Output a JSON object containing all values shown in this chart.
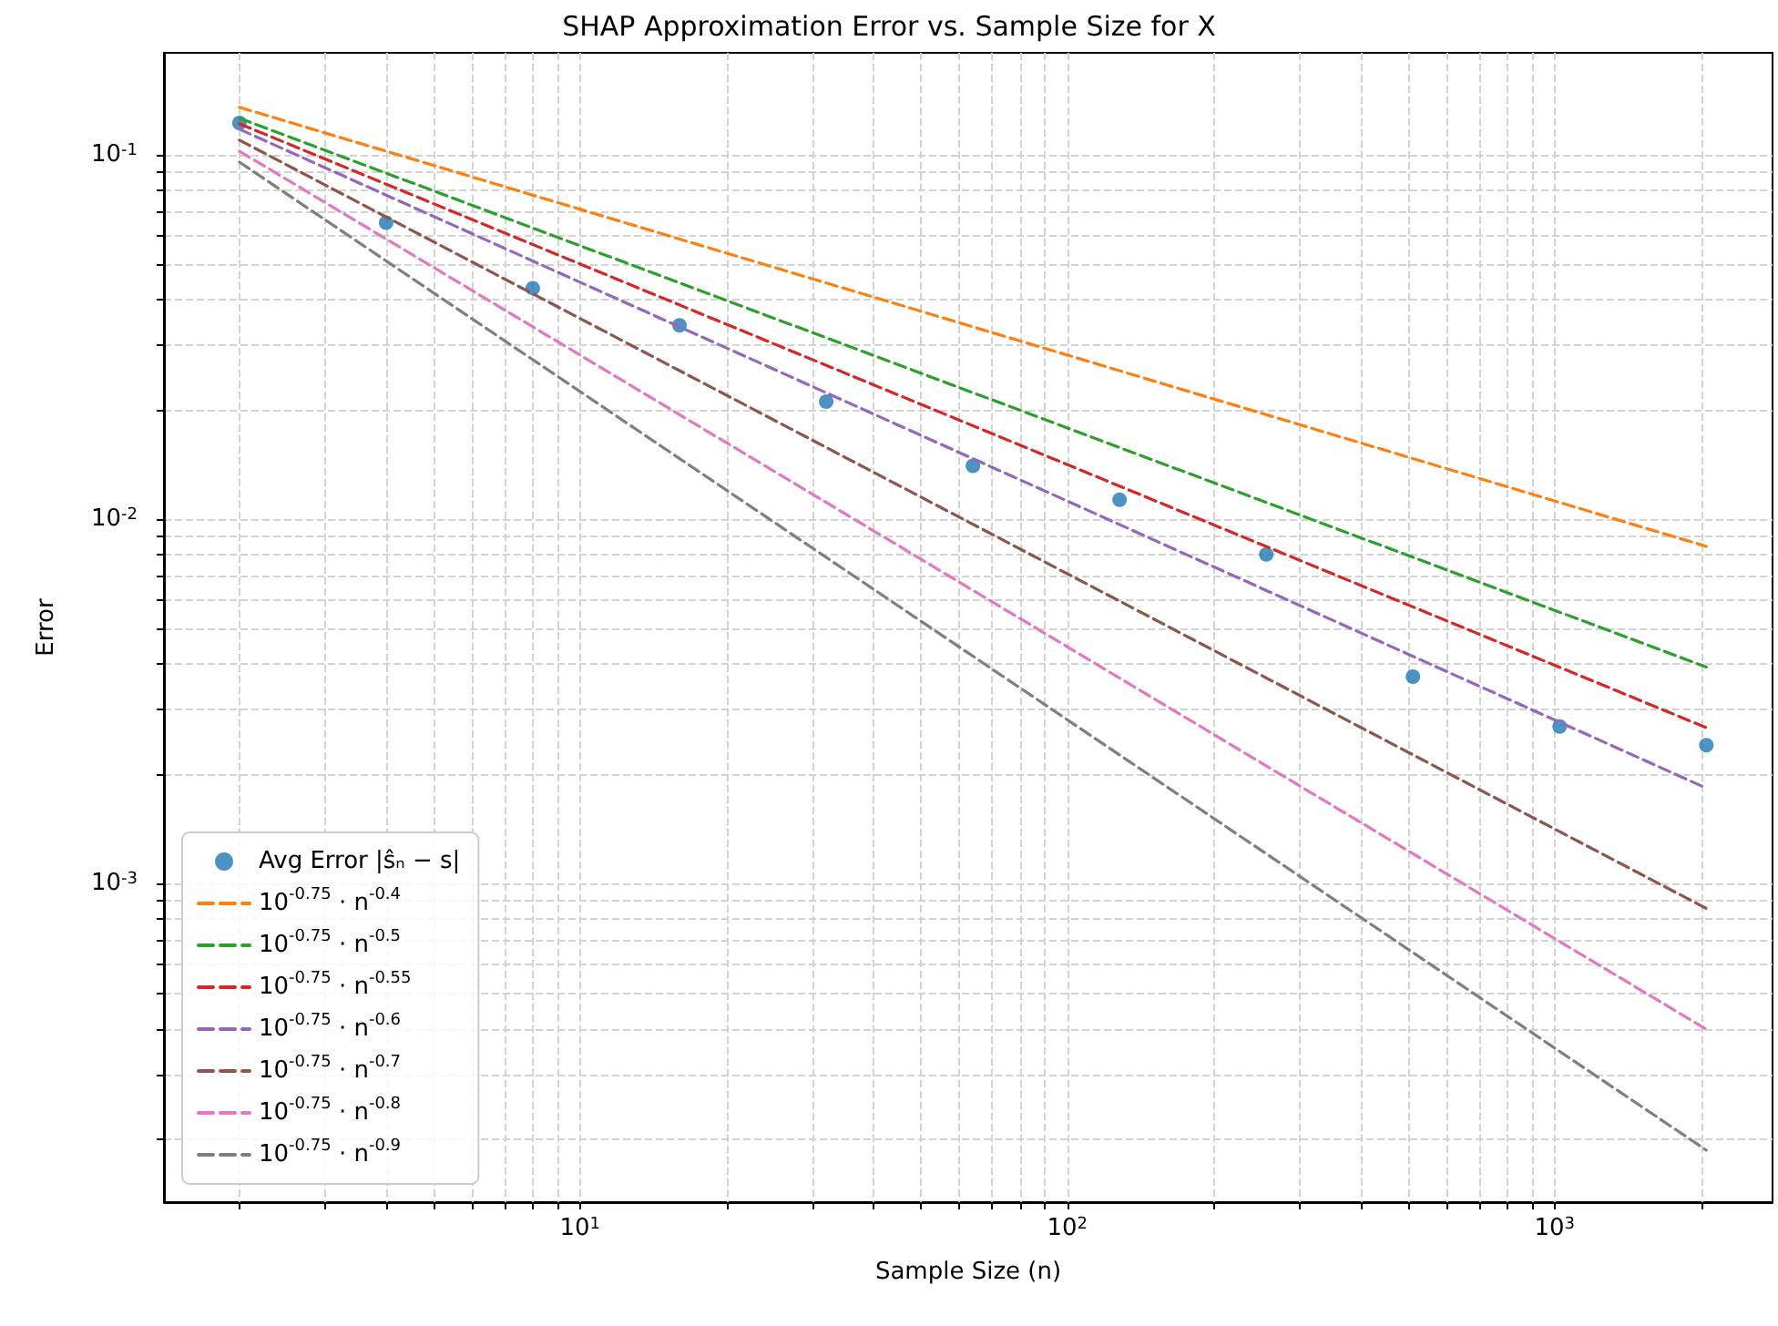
{
  "chart_data": {
    "type": "line",
    "title": "SHAP Approximation Error vs. Sample Size for X",
    "xlabel": "Sample Size (n)",
    "ylabel": "Error",
    "log": "xy",
    "grid": true,
    "legend": "bottom left",
    "line_style": "dashed",
    "marker": "none",
    "xlim": [
      1.4,
      2800
    ],
    "ylim": [
      0.000134,
      0.19
    ],
    "xticks": [
      {
        "value": 2,
        "label": null
      },
      {
        "value": 3,
        "label": null
      },
      {
        "value": 4,
        "label": null
      },
      {
        "value": 5,
        "label": null
      },
      {
        "value": 6,
        "label": null
      },
      {
        "value": 7,
        "label": null
      },
      {
        "value": 8,
        "label": null
      },
      {
        "value": 9,
        "label": null
      },
      {
        "value": 10,
        "label": "10$^{1}$"
      },
      {
        "value": 20,
        "label": null
      },
      {
        "value": 30,
        "label": null
      },
      {
        "value": 40,
        "label": null
      },
      {
        "value": 50,
        "label": null
      },
      {
        "value": 60,
        "label": null
      },
      {
        "value": 70,
        "label": null
      },
      {
        "value": 80,
        "label": null
      },
      {
        "value": 90,
        "label": null
      },
      {
        "value": 100,
        "label": "10$^{2}$"
      },
      {
        "value": 200,
        "label": null
      },
      {
        "value": 300,
        "label": null
      },
      {
        "value": 400,
        "label": null
      },
      {
        "value": 500,
        "label": null
      },
      {
        "value": 600,
        "label": null
      },
      {
        "value": 700,
        "label": null
      },
      {
        "value": 800,
        "label": null
      },
      {
        "value": 900,
        "label": null
      },
      {
        "value": 1000,
        "label": "10$^{3}$"
      },
      {
        "value": 2000,
        "label": null
      }
    ],
    "yticks": [
      {
        "value": 0.0002,
        "label": null
      },
      {
        "value": 0.0003,
        "label": null
      },
      {
        "value": 0.0004,
        "label": null
      },
      {
        "value": 0.0005,
        "label": null
      },
      {
        "value": 0.0006,
        "label": null
      },
      {
        "value": 0.0007,
        "label": null
      },
      {
        "value": 0.0008,
        "label": null
      },
      {
        "value": 0.0009,
        "label": null
      },
      {
        "value": 0.001,
        "label": "10$^{-3}$"
      },
      {
        "value": 0.002,
        "label": null
      },
      {
        "value": 0.003,
        "label": null
      },
      {
        "value": 0.004,
        "label": null
      },
      {
        "value": 0.005,
        "label": null
      },
      {
        "value": 0.006,
        "label": null
      },
      {
        "value": 0.007,
        "label": null
      },
      {
        "value": 0.008,
        "label": null
      },
      {
        "value": 0.009,
        "label": null
      },
      {
        "value": 0.01,
        "label": "10$^{-2}$"
      },
      {
        "value": 0.02,
        "label": null
      },
      {
        "value": 0.03,
        "label": null
      },
      {
        "value": 0.04,
        "label": null
      },
      {
        "value": 0.05,
        "label": null
      },
      {
        "value": 0.06,
        "label": null
      },
      {
        "value": 0.07,
        "label": null
      },
      {
        "value": 0.08,
        "label": null
      },
      {
        "value": 0.09,
        "label": null
      },
      {
        "value": 0.1,
        "label": "10$^{-1}$"
      }
    ],
    "series": [
      {
        "name": "Avg Error |ŝₙ − s|",
        "type": "scatter",
        "marker": "circle",
        "color": "#1f77b4",
        "x": [
          2,
          4,
          8,
          16,
          32,
          64,
          128,
          256,
          512,
          1024,
          2048
        ],
        "values": [
          0.122,
          0.065,
          0.043,
          0.034,
          0.021,
          0.014,
          0.0113,
          0.008,
          0.0037,
          0.0027,
          0.0024
        ]
      },
      {
        "name": "10$^{-0.75}$ · n$^{-0.4}$",
        "color": "#ff7f0e",
        "x": [
          2,
          2048
        ],
        "values": [
          0.1347,
          0.00842
        ]
      },
      {
        "name": "10$^{-0.75}$ · n$^{-0.5}$",
        "color": "#2ca02c",
        "x": [
          2,
          2048
        ],
        "values": [
          0.1257,
          0.00393
        ]
      },
      {
        "name": "10$^{-0.75}$ · n$^{-0.55}$",
        "color": "#d62728",
        "x": [
          2,
          2048
        ],
        "values": [
          0.1214,
          0.00268
        ]
      },
      {
        "name": "10$^{-0.75}$ · n$^{-0.6}$",
        "color": "#9467bd",
        "x": [
          2,
          2048
        ],
        "values": [
          0.1173,
          0.00183
        ]
      },
      {
        "name": "10$^{-0.75}$ · n$^{-0.7}$",
        "color": "#8c564b",
        "x": [
          2,
          2048
        ],
        "values": [
          0.1095,
          0.000856
        ]
      },
      {
        "name": "10$^{-0.75}$ · n$^{-0.8}$",
        "color": "#e377c2",
        "x": [
          2,
          2048
        ],
        "values": [
          0.1021,
          0.000399
        ]
      },
      {
        "name": "10$^{-0.75}$ · n$^{-0.9}$",
        "color": "#7f7f7f",
        "x": [
          2,
          2048
        ],
        "values": [
          0.0953,
          0.000186
        ]
      }
    ]
  }
}
